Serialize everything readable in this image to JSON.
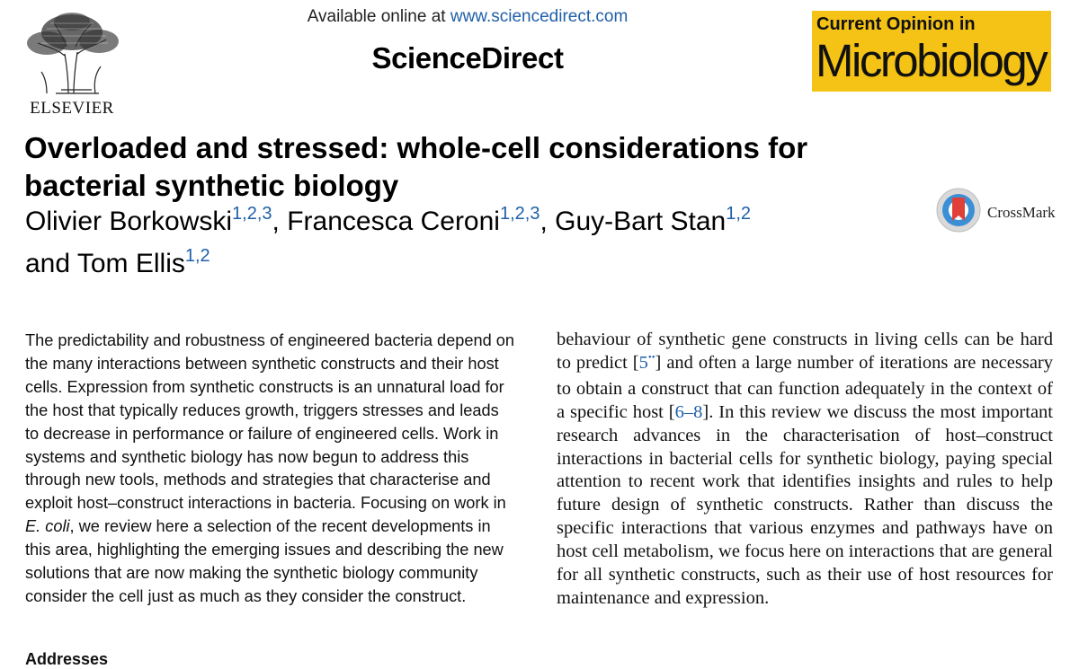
{
  "header": {
    "available_prefix": "Available online at ",
    "available_url": "www.sciencedirect.com",
    "platform": "ScienceDirect",
    "publisher": "ELSEVIER"
  },
  "journal": {
    "line1": "Current Opinion in",
    "line2": "Microbiology",
    "badge_color": "#f4c315"
  },
  "crossmark": {
    "label": "CrossMark",
    "icon": "crossmark-icon"
  },
  "article": {
    "title": "Overloaded and stressed: whole-cell considerations for bacterial synthetic biology",
    "authors": [
      {
        "name": "Olivier Borkowski",
        "sup": "1,2,3",
        "sep": ", "
      },
      {
        "name": "Francesca Ceroni",
        "sup": "1,2,3",
        "sep": ", "
      },
      {
        "name": "Guy-Bart Stan",
        "sup": "1,2",
        "sep": ""
      },
      {
        "name": "and Tom Ellis",
        "sup": "1,2",
        "sep": ""
      }
    ]
  },
  "abstract": {
    "part1": "The predictability and robustness of engineered bacteria depend on the many interactions between synthetic constructs and their host cells. Expression from synthetic constructs is an unnatural load for the host that typically reduces growth, triggers stresses and leads to decrease in performance or failure of engineered cells. Work in systems and synthetic biology has now begun to address this through new tools, methods and strategies that characterise and exploit host–construct interactions in bacteria. Focusing on work in ",
    "italic": "E. coli",
    "part2": ", we review here a selection of the recent developments in this area, highlighting the emerging issues and describing the new solutions that are now making the synthetic biology community consider the cell just as much as they consider the construct.",
    "next_heading": "Addresses"
  },
  "body": {
    "t1": "behaviour of synthetic gene constructs in living cells can be hard to predict [",
    "ref1": "5",
    "ref1_mark": "••",
    "t2": "] and often a large number of iterations are necessary to obtain a construct that can function adequately in the context of a specific host [",
    "ref2": "6–8",
    "t3": "]. In this review we discuss the most important research advances in the characterisation of host–construct interactions in bacterial cells for synthetic biology, paying special attention to recent work that identifies insights and rules to help future design of synthetic constructs. Rather than discuss the specific interactions that various enzymes and pathways have on host cell metabolism, we focus here on interactions that are general for all synthetic constructs, such as their use of host resources for maintenance and expression."
  }
}
